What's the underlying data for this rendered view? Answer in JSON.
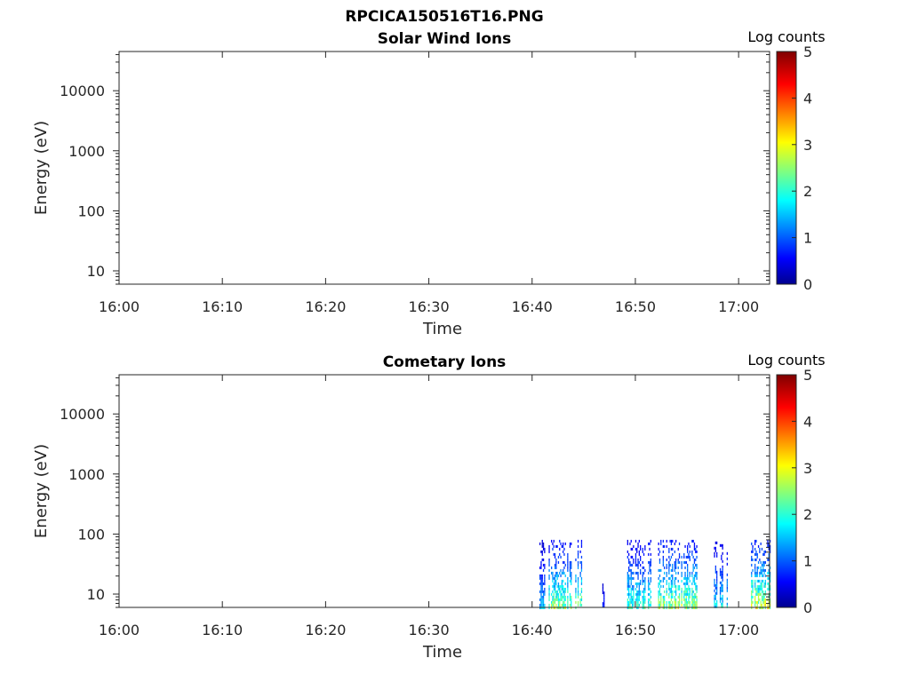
{
  "figure_title": "RPCICA150516T16.PNG",
  "chart_data": [
    {
      "type": "heatmap",
      "title": "Solar Wind Ions",
      "xlabel": "Time",
      "ylabel": "Energy (eV)",
      "x_ticks": [
        "16:00",
        "16:10",
        "16:20",
        "16:30",
        "16:40",
        "16:50",
        "17:00"
      ],
      "x_range_minutes": [
        0,
        63
      ],
      "y_ticks": [
        "10",
        "100",
        "1000",
        "10000"
      ],
      "y_range": [
        6,
        45000
      ],
      "y_scale": "log",
      "colorbar": {
        "label": "Log counts",
        "ticks": [
          "0",
          "1",
          "2",
          "3",
          "4",
          "5"
        ],
        "range": [
          0,
          5
        ],
        "colormap": "jet"
      },
      "bursts": []
    },
    {
      "type": "heatmap",
      "title": "Cometary Ions",
      "xlabel": "Time",
      "ylabel": "Energy (eV)",
      "x_ticks": [
        "16:00",
        "16:10",
        "16:20",
        "16:30",
        "16:40",
        "16:50",
        "17:00"
      ],
      "x_range_minutes": [
        0,
        63
      ],
      "y_ticks": [
        "10",
        "100",
        "1000",
        "10000"
      ],
      "y_range": [
        6,
        45000
      ],
      "y_scale": "log",
      "colorbar": {
        "label": "Log counts",
        "ticks": [
          "0",
          "1",
          "2",
          "3",
          "4",
          "5"
        ],
        "range": [
          0,
          5
        ],
        "colormap": "jet"
      },
      "bursts": [
        {
          "t_start": 40.6,
          "t_end": 41.2,
          "e_max": 80,
          "peak_log_counts": 1.8
        },
        {
          "t_start": 41.6,
          "t_end": 44.8,
          "e_max": 80,
          "peak_log_counts": 3.1
        },
        {
          "t_start": 46.8,
          "t_end": 47.0,
          "e_max": 25,
          "peak_log_counts": 1.0
        },
        {
          "t_start": 49.2,
          "t_end": 51.5,
          "e_max": 80,
          "peak_log_counts": 2.6
        },
        {
          "t_start": 52.2,
          "t_end": 56.0,
          "e_max": 80,
          "peak_log_counts": 3.3
        },
        {
          "t_start": 57.5,
          "t_end": 59.0,
          "e_max": 75,
          "peak_log_counts": 2.2
        },
        {
          "t_start": 61.2,
          "t_end": 63.0,
          "e_max": 80,
          "peak_log_counts": 3.6
        }
      ]
    }
  ],
  "colors": {
    "axis": "#262626",
    "background": "#ffffff"
  }
}
